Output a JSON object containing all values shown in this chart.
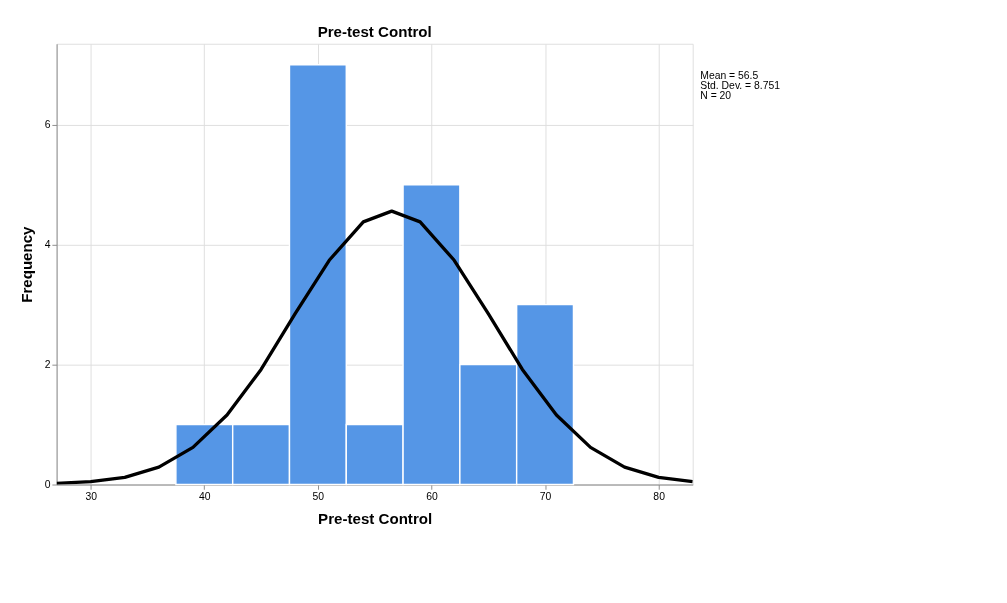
{
  "chart_data": {
    "type": "histogram",
    "title": "Pre-test Control",
    "xlabel": "Pre-test Control",
    "ylabel": "Frequency",
    "bins": [
      37.5,
      42.5,
      47.5,
      52.5,
      57.5,
      62.5,
      67.5,
      72.5
    ],
    "values": [
      1,
      1,
      7,
      1,
      5,
      2,
      3
    ],
    "color": "#5596e6",
    "series": [
      {
        "type": "line",
        "color": "#000000",
        "x": [
          27,
          30,
          33,
          36,
          39,
          42,
          45,
          48,
          51,
          54,
          56.5,
          59,
          62,
          65,
          68,
          71,
          74,
          77,
          80,
          83
        ],
        "values": [
          0.02,
          0.05,
          0.12,
          0.29,
          0.62,
          1.16,
          1.92,
          2.85,
          3.74,
          4.38,
          4.56,
          4.38,
          3.74,
          2.85,
          1.92,
          1.16,
          0.62,
          0.29,
          0.12,
          0.05
        ]
      }
    ],
    "xlim": [
      27,
      83
    ],
    "xticks": [
      30,
      40,
      50,
      60,
      70,
      80
    ],
    "ylim": [
      0,
      7.35
    ],
    "yticks": [
      0,
      2,
      4,
      6
    ],
    "grid": true,
    "line_style": "solid",
    "annotations": [
      "Mean = 56.5",
      "Std. Dev. = 8.751",
      "N = 20"
    ]
  }
}
